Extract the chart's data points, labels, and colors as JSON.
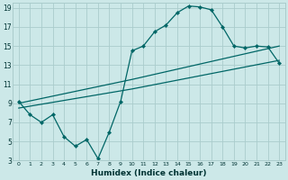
{
  "xlabel": "Humidex (Indice chaleur)",
  "background_color": "#cce8e8",
  "grid_color": "#aacccc",
  "line_color": "#006666",
  "xlim": [
    -0.5,
    23.5
  ],
  "ylim": [
    3,
    19.5
  ],
  "xticks": [
    0,
    1,
    2,
    3,
    4,
    5,
    6,
    7,
    8,
    9,
    10,
    11,
    12,
    13,
    14,
    15,
    16,
    17,
    18,
    19,
    20,
    21,
    22,
    23
  ],
  "yticks": [
    3,
    5,
    7,
    9,
    11,
    13,
    15,
    17,
    19
  ],
  "line1_x": [
    0,
    1,
    2,
    3,
    4,
    5,
    6,
    7,
    8,
    9,
    10,
    11,
    12,
    13,
    14,
    15,
    16,
    17,
    18,
    19,
    20,
    21,
    22,
    23
  ],
  "line1_y": [
    9.2,
    7.8,
    7.0,
    7.8,
    5.5,
    4.5,
    5.2,
    3.2,
    6.0,
    9.2,
    14.5,
    15.0,
    16.5,
    17.2,
    18.5,
    19.2,
    19.1,
    18.8,
    17.0,
    15.0,
    14.8,
    15.0,
    14.9,
    13.2
  ],
  "line2_x": [
    0,
    10,
    23
  ],
  "line2_y": [
    9.0,
    11.5,
    15.0
  ],
  "line3_x": [
    0,
    10,
    23
  ],
  "line3_y": [
    8.5,
    10.5,
    13.5
  ]
}
